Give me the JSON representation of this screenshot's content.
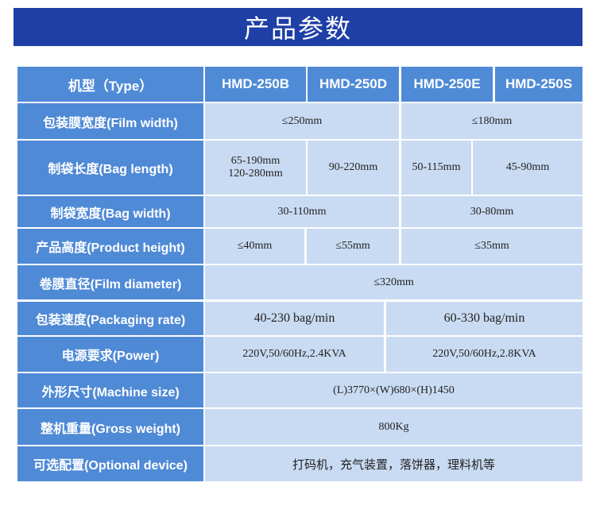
{
  "title": "产品参数",
  "header": {
    "label": "机型（Type）",
    "models": [
      "HMD-250B",
      "HMD-250D",
      "HMD-250E",
      "HMD-250S"
    ]
  },
  "rows": {
    "film_width": {
      "label": "包装膜宽度(Film width)",
      "values": [
        "≤250mm",
        "≤180mm"
      ]
    },
    "bag_length": {
      "label": "制袋长度(Bag length)",
      "values": [
        "65-190mm",
        "120-280mm",
        "90-220mm",
        "50-115mm",
        "45-90mm"
      ]
    },
    "bag_width": {
      "label": "制袋宽度(Bag width)",
      "values": [
        "30-110mm",
        "30-80mm"
      ]
    },
    "product_height": {
      "label": "产品高度(Product height)",
      "values": [
        "≤40mm",
        "≤55mm",
        "≤35mm"
      ]
    },
    "film_diameter": {
      "label": "卷膜直径(Film diameter)",
      "values": [
        "≤320mm"
      ]
    },
    "packaging_rate": {
      "label": "包装速度(Packaging rate)",
      "values": [
        "40-230 bag/min",
        "60-330 bag/min"
      ]
    },
    "power": {
      "label": "电源要求(Power)",
      "values": [
        "220V,50/60Hz,2.4KVA",
        "220V,50/60Hz,2.8KVA"
      ]
    },
    "machine_size": {
      "label": "外形尺寸(Machine size)",
      "values": [
        "(L)3770×(W)680×(H)1450"
      ]
    },
    "gross_weight": {
      "label": "整机重量(Gross weight)",
      "values": [
        "800Kg"
      ]
    },
    "optional_device": {
      "label": "可选配置(Optional device)",
      "values": [
        "打码机，充气装置，落饼器，理料机等"
      ]
    }
  },
  "colors": {
    "banner": "#1e3fa6",
    "label_cell": "#4f8ad6",
    "value_cell": "#c9dbf2"
  }
}
